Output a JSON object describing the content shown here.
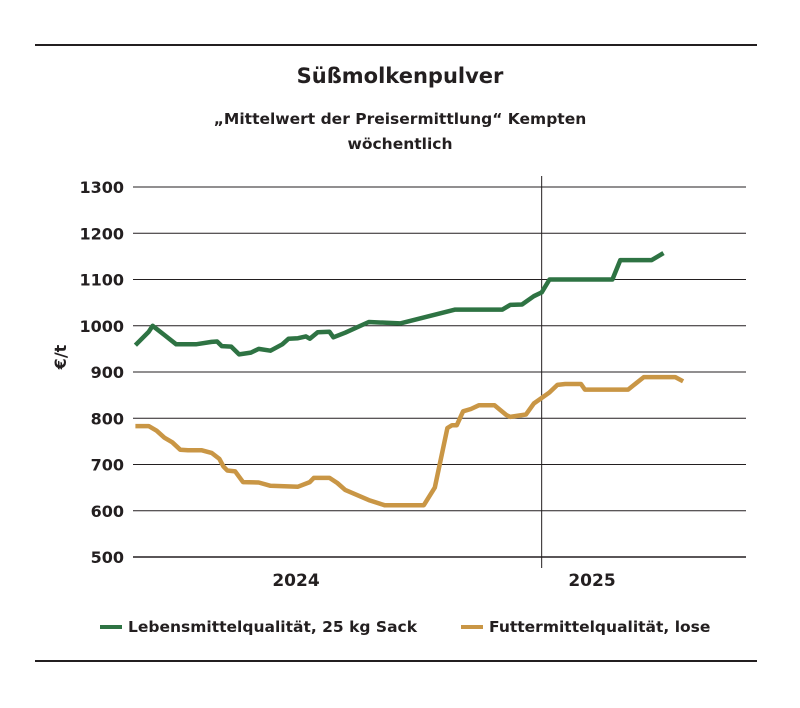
{
  "header": {
    "title": "Süßmolkenpulver",
    "subtitle_line1": "„Mittelwert der Preisermittlung“ Kempten",
    "subtitle_line2": "wöchentlich"
  },
  "colors": {
    "food_quality": "#2e7343",
    "feed_quality": "#c99645",
    "axis": "#231f20"
  },
  "chart_data": {
    "type": "line",
    "title": "Süßmolkenpulver",
    "subtitle": "„Mittelwert der Preisermittlung“ Kempten wöchentlich",
    "xlabel": "",
    "ylabel": "€/t",
    "ylim": [
      500,
      1300
    ],
    "yticks": [
      500,
      600,
      700,
      800,
      900,
      1000,
      1100,
      1200,
      1300
    ],
    "x_axis_labels": [
      "2024",
      "2025"
    ],
    "x_unit": "week",
    "x_range": [
      0,
      78
    ],
    "year_boundary_week": 52,
    "grid": "horizontal",
    "legend_position": "bottom",
    "series": [
      {
        "name": "Lebensmittelqualität, 25 kg Sack",
        "color": "#2e7343",
        "points": [
          [
            0.3,
            958
          ],
          [
            2,
            987
          ],
          [
            2.5,
            1000
          ],
          [
            4,
            980
          ],
          [
            5.5,
            960
          ],
          [
            7,
            960
          ],
          [
            8,
            960
          ],
          [
            10,
            965
          ],
          [
            10.7,
            966
          ],
          [
            11.3,
            956
          ],
          [
            12.5,
            955
          ],
          [
            13.5,
            938
          ],
          [
            15,
            942
          ],
          [
            16,
            950
          ],
          [
            17.5,
            946
          ],
          [
            19,
            960
          ],
          [
            19.8,
            972
          ],
          [
            21,
            973
          ],
          [
            22,
            977
          ],
          [
            22.5,
            972
          ],
          [
            23.5,
            986
          ],
          [
            25,
            987
          ],
          [
            25.5,
            975
          ],
          [
            27,
            985
          ],
          [
            30,
            1008
          ],
          [
            34,
            1005
          ],
          [
            41,
            1035
          ],
          [
            47,
            1035
          ],
          [
            48,
            1045
          ],
          [
            49.5,
            1046
          ],
          [
            51,
            1064
          ],
          [
            52,
            1072
          ],
          [
            53,
            1100
          ],
          [
            61,
            1100
          ],
          [
            62,
            1142
          ],
          [
            66,
            1142
          ],
          [
            67.5,
            1157
          ]
        ]
      },
      {
        "name": "Futtermittelqualität, lose",
        "color": "#c99645",
        "points": [
          [
            0.3,
            783
          ],
          [
            2,
            783
          ],
          [
            3,
            773
          ],
          [
            4,
            758
          ],
          [
            5,
            748
          ],
          [
            6,
            732
          ],
          [
            7,
            731
          ],
          [
            8.7,
            731
          ],
          [
            10,
            725
          ],
          [
            11,
            712
          ],
          [
            11.5,
            696
          ],
          [
            12,
            687
          ],
          [
            13,
            685
          ],
          [
            14,
            662
          ],
          [
            16,
            661
          ],
          [
            17.5,
            654
          ],
          [
            21,
            652
          ],
          [
            22.5,
            662
          ],
          [
            23,
            671
          ],
          [
            25,
            671
          ],
          [
            26,
            660
          ],
          [
            27,
            645
          ],
          [
            30,
            623
          ],
          [
            32,
            612
          ],
          [
            37,
            612
          ],
          [
            38.4,
            650
          ],
          [
            40,
            779
          ],
          [
            40.6,
            785
          ],
          [
            41.2,
            785
          ],
          [
            42,
            815
          ],
          [
            43,
            820
          ],
          [
            44,
            828
          ],
          [
            46,
            828
          ],
          [
            47.5,
            807
          ],
          [
            48,
            803
          ],
          [
            50,
            808
          ],
          [
            51,
            832
          ],
          [
            53,
            856
          ],
          [
            54,
            872
          ],
          [
            55,
            874
          ],
          [
            57,
            874
          ],
          [
            57.5,
            862
          ],
          [
            63,
            862
          ],
          [
            65,
            889
          ],
          [
            69,
            889
          ],
          [
            70,
            880
          ]
        ]
      }
    ]
  }
}
